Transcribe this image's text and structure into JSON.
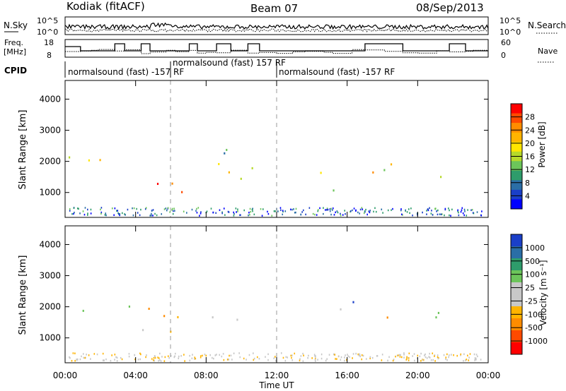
{
  "header": {
    "station": "Kodiak (fitACF)",
    "beam": "Beam 07",
    "date": "08/Sep/2013"
  },
  "top_panels": {
    "nsky_label": "N.Sky",
    "nsearch_label": "N.Search",
    "freq_label_1": "Freq.",
    "freq_label_2": "[MHz]",
    "nave_label": "Nave",
    "cpid_label": "CPID",
    "left_ticks_noise": [
      "10^5",
      "10^0"
    ],
    "right_ticks_noise": [
      "10^5",
      "10^0"
    ],
    "left_ticks_freq": [
      "18",
      "8"
    ],
    "right_ticks_nave": [
      "60",
      "0"
    ],
    "cpid_segments": [
      {
        "label": "normalsound (fast) -157 RF",
        "start_hour": 0
      },
      {
        "label": "normalsound (fast) 157 RF",
        "start_hour": 6
      },
      {
        "label": "normalsound (fast) -157 RF",
        "start_hour": 12
      }
    ]
  },
  "chart_data": [
    {
      "type": "heatmap",
      "title": "",
      "xlabel": "Time UT",
      "ylabel": "Slant Range [km]",
      "xlim": [
        0,
        24
      ],
      "ylim": [
        200,
        4600
      ],
      "x_tick_labels": [
        "00:00",
        "04:00",
        "08:00",
        "12:00",
        "16:00",
        "20:00",
        "00:00"
      ],
      "y_tick_labels": [
        "1000",
        "2000",
        "3000",
        "4000"
      ],
      "colorbar": {
        "label": "Power [dB]",
        "ticks": [
          "28",
          "24",
          "20",
          "16",
          "12",
          "8",
          "4"
        ],
        "colors": [
          "#ff0000",
          "#ff4a00",
          "#ff8c00",
          "#ffb400",
          "#ffe600",
          "#b6d92a",
          "#6cc55a",
          "#2e9c6b",
          "#2a6ea6",
          "#1a3fc8",
          "#0000ff"
        ]
      },
      "scatter_regions": [
        {
          "t": [
            0.2,
            5.5
          ],
          "r": [
            1700,
            2200
          ],
          "level": 0.55
        },
        {
          "t": [
            2.5,
            7.5
          ],
          "r": [
            900,
            1500
          ],
          "level": 0.95
        },
        {
          "t": [
            5.5,
            11
          ],
          "r": [
            1400,
            2000
          ],
          "level": 0.45
        },
        {
          "t": [
            8,
            11
          ],
          "r": [
            2200,
            2800
          ],
          "level": 0.3
        },
        {
          "t": [
            14,
            22
          ],
          "r": [
            1500,
            2100
          ],
          "level": 0.55
        },
        {
          "t": [
            14.5,
            16.5
          ],
          "r": [
            700,
            1300
          ],
          "level": 0.2
        }
      ]
    },
    {
      "type": "heatmap",
      "title": "",
      "xlabel": "Time UT",
      "ylabel": "Slant Range [km]",
      "xlim": [
        0,
        24
      ],
      "ylim": [
        200,
        4600
      ],
      "x_tick_labels": [
        "00:00",
        "04:00",
        "08:00",
        "12:00",
        "16:00",
        "20:00",
        "00:00"
      ],
      "y_tick_labels": [
        "1000",
        "2000",
        "3000",
        "4000"
      ],
      "colorbar": {
        "label": "Velocity [m s⁻¹]",
        "ticks": [
          "1000",
          "500",
          "100",
          "25",
          "-25",
          "-100",
          "-500",
          "-1000"
        ],
        "colors": [
          "#1a3fc8",
          "#2a6ea6",
          "#2e9c6b",
          "#6cc55a",
          "#c8c8c8",
          "#c8c8c8",
          "#ffb400",
          "#ff8c00",
          "#ff4a00",
          "#ff0000"
        ]
      },
      "scatter_regions": [
        {
          "t": [
            0.2,
            5.5
          ],
          "r": [
            1700,
            2200
          ],
          "level": 0.5
        },
        {
          "t": [
            3,
            7
          ],
          "r": [
            900,
            1300
          ],
          "level": 0.35
        },
        {
          "t": [
            5.5,
            11
          ],
          "r": [
            1400,
            2000
          ],
          "level": 0.5
        },
        {
          "t": [
            14,
            17
          ],
          "r": [
            1900,
            2400
          ],
          "level": 0.8
        },
        {
          "t": [
            16,
            22
          ],
          "r": [
            1500,
            2000
          ],
          "level": 0.5
        }
      ]
    }
  ]
}
